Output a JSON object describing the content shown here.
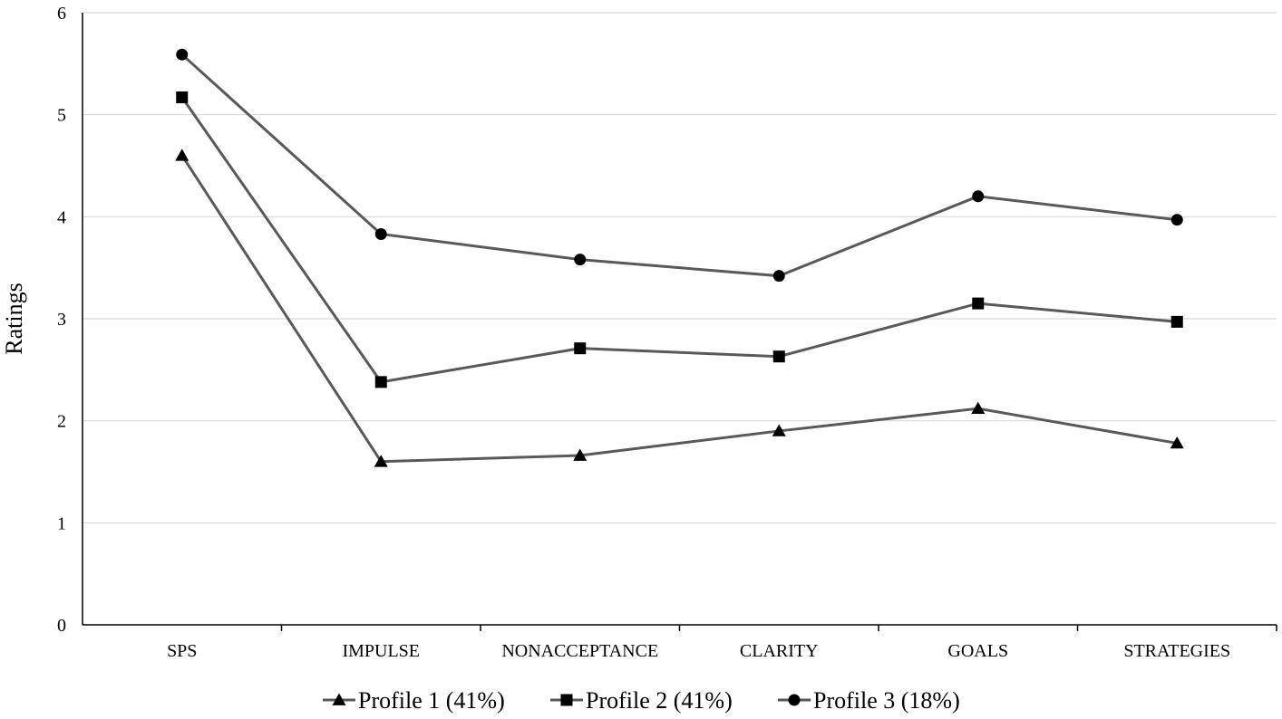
{
  "chart_data": {
    "type": "line",
    "title": "",
    "xlabel": "",
    "ylabel": "Ratings",
    "ylim": [
      0,
      6
    ],
    "yticks": [
      0,
      1,
      2,
      3,
      4,
      5,
      6
    ],
    "grid": "horizontal",
    "legend_position": "bottom",
    "categories": [
      "SPS",
      "IMPULSE",
      "NONACCEPTANCE",
      "CLARITY",
      "GOALS",
      "STRATEGIES"
    ],
    "series": [
      {
        "name": "Profile 1 (41%)",
        "marker": "triangle",
        "values": [
          4.6,
          1.6,
          1.66,
          1.9,
          2.12,
          1.78
        ]
      },
      {
        "name": "Profile 2 (41%)",
        "marker": "square",
        "values": [
          5.17,
          2.38,
          2.71,
          2.63,
          3.15,
          2.97
        ]
      },
      {
        "name": "Profile 3 (18%)",
        "marker": "circle",
        "values": [
          5.59,
          3.83,
          3.58,
          3.42,
          4.2,
          3.97
        ]
      }
    ],
    "colors": {
      "line": "#595959",
      "marker": "#000000",
      "grid": "#d9d9d9",
      "axis": "#000000"
    }
  }
}
